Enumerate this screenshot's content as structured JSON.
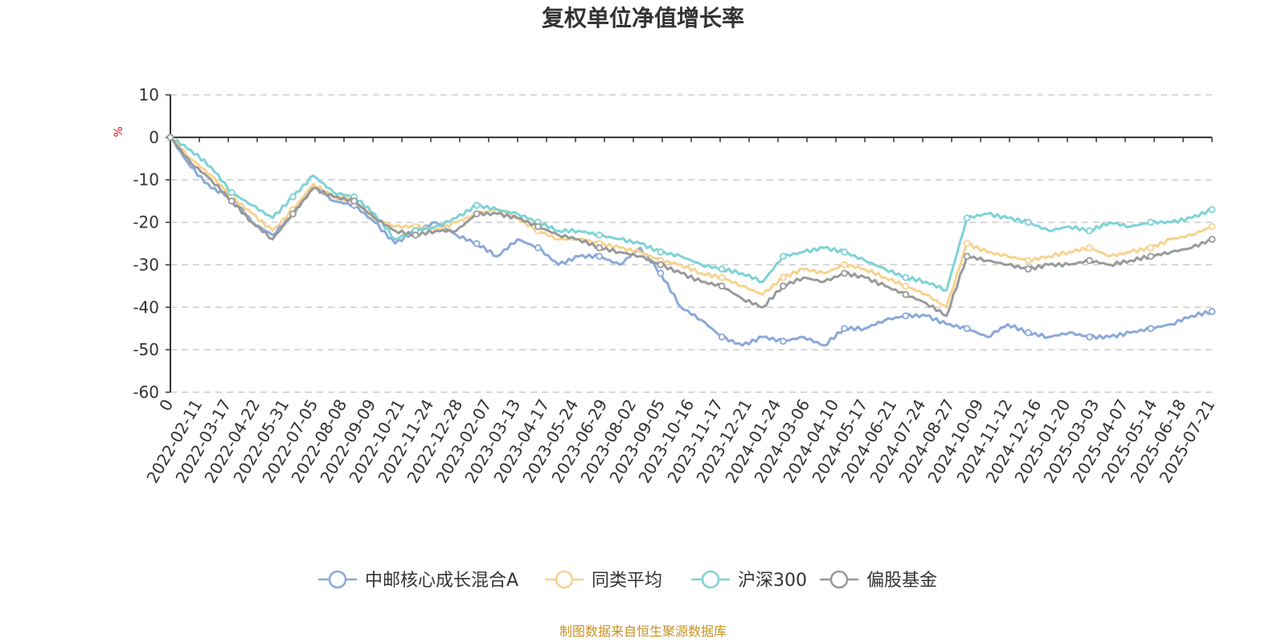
{
  "chart_data": {
    "type": "line",
    "title": "复权单位净值增长率",
    "y_unit": "%",
    "ylim": [
      -60,
      10
    ],
    "y_ticks": [
      10,
      0,
      -10,
      -20,
      -30,
      -40,
      -50,
      -60
    ],
    "x_tick_labels": [
      "0",
      "2022-02-11",
      "2022-03-17",
      "2022-04-22",
      "2022-05-31",
      "2022-07-05",
      "2022-08-08",
      "2022-09-09",
      "2022-10-21",
      "2022-11-24",
      "2022-12-28",
      "2023-02-07",
      "2023-03-13",
      "2023-04-17",
      "2023-05-24",
      "2023-06-29",
      "2023-08-02",
      "2023-09-05",
      "2023-10-16",
      "2023-11-17",
      "2023-12-21",
      "2024-01-24",
      "2024-03-06",
      "2024-04-10",
      "2024-05-17",
      "2024-06-21",
      "2024-07-24",
      "2024-08-27",
      "2024-10-09",
      "2024-11-12",
      "2024-12-16",
      "2025-01-20",
      "2025-03-03",
      "2025-04-07",
      "2025-05-14",
      "2025-06-18",
      "2025-07-21"
    ],
    "grid": "horizontal dashed",
    "legend_position": "bottom",
    "source_note": "制图数据来自恒生聚源数据库",
    "series": [
      {
        "name": "中邮核心成长混合A",
        "color": "#8aa9d8",
        "values": [
          0,
          -7,
          -12,
          -14,
          -20,
          -23,
          -18,
          -11,
          -15,
          -16,
          -20,
          -25,
          -22,
          -20,
          -23,
          -25,
          -28,
          -24,
          -26,
          -30,
          -28,
          -28,
          -30,
          -26,
          -32,
          -40,
          -43,
          -47,
          -49,
          -47,
          -48,
          -47,
          -49,
          -45,
          -45,
          -43,
          -42,
          -42,
          -44,
          -45,
          -47,
          -44,
          -46,
          -47,
          -46,
          -47,
          -47,
          -46,
          -45,
          -44,
          -42,
          -41
        ]
      },
      {
        "name": "同类平均",
        "color": "#f8d28e",
        "values": [
          0,
          -5,
          -9,
          -14,
          -18,
          -22,
          -17,
          -11,
          -14,
          -15,
          -19,
          -21,
          -21,
          -22,
          -20,
          -18,
          -17,
          -19,
          -22,
          -24,
          -24,
          -25,
          -26,
          -27,
          -29,
          -30,
          -32,
          -33,
          -35,
          -37,
          -33,
          -31,
          -32,
          -30,
          -31,
          -33,
          -35,
          -37,
          -40,
          -25,
          -27,
          -28,
          -29,
          -28,
          -27,
          -26,
          -28,
          -27,
          -26,
          -24,
          -23,
          -21
        ]
      },
      {
        "name": "沪深300",
        "color": "#7dd3d6",
        "values": [
          0,
          -3,
          -7,
          -13,
          -16,
          -19,
          -14,
          -9,
          -13,
          -14,
          -18,
          -24,
          -22,
          -21,
          -19,
          -16,
          -17,
          -18,
          -20,
          -22,
          -22,
          -23,
          -24,
          -25,
          -27,
          -28,
          -30,
          -31,
          -32,
          -34,
          -28,
          -27,
          -26,
          -27,
          -29,
          -31,
          -33,
          -34,
          -36,
          -19,
          -18,
          -19,
          -20,
          -22,
          -21,
          -22,
          -20,
          -21,
          -20,
          -20,
          -19,
          -17
        ]
      },
      {
        "name": "偏股基金",
        "color": "#999999",
        "values": [
          0,
          -6,
          -10,
          -15,
          -20,
          -24,
          -18,
          -12,
          -14,
          -15,
          -19,
          -22,
          -23,
          -22,
          -22,
          -18,
          -18,
          -19,
          -21,
          -23,
          -24,
          -26,
          -27,
          -28,
          -30,
          -32,
          -34,
          -35,
          -38,
          -40,
          -35,
          -33,
          -34,
          -32,
          -33,
          -35,
          -37,
          -39,
          -42,
          -28,
          -29,
          -30,
          -31,
          -30,
          -30,
          -29,
          -30,
          -29,
          -28,
          -27,
          -26,
          -24
        ]
      }
    ]
  }
}
